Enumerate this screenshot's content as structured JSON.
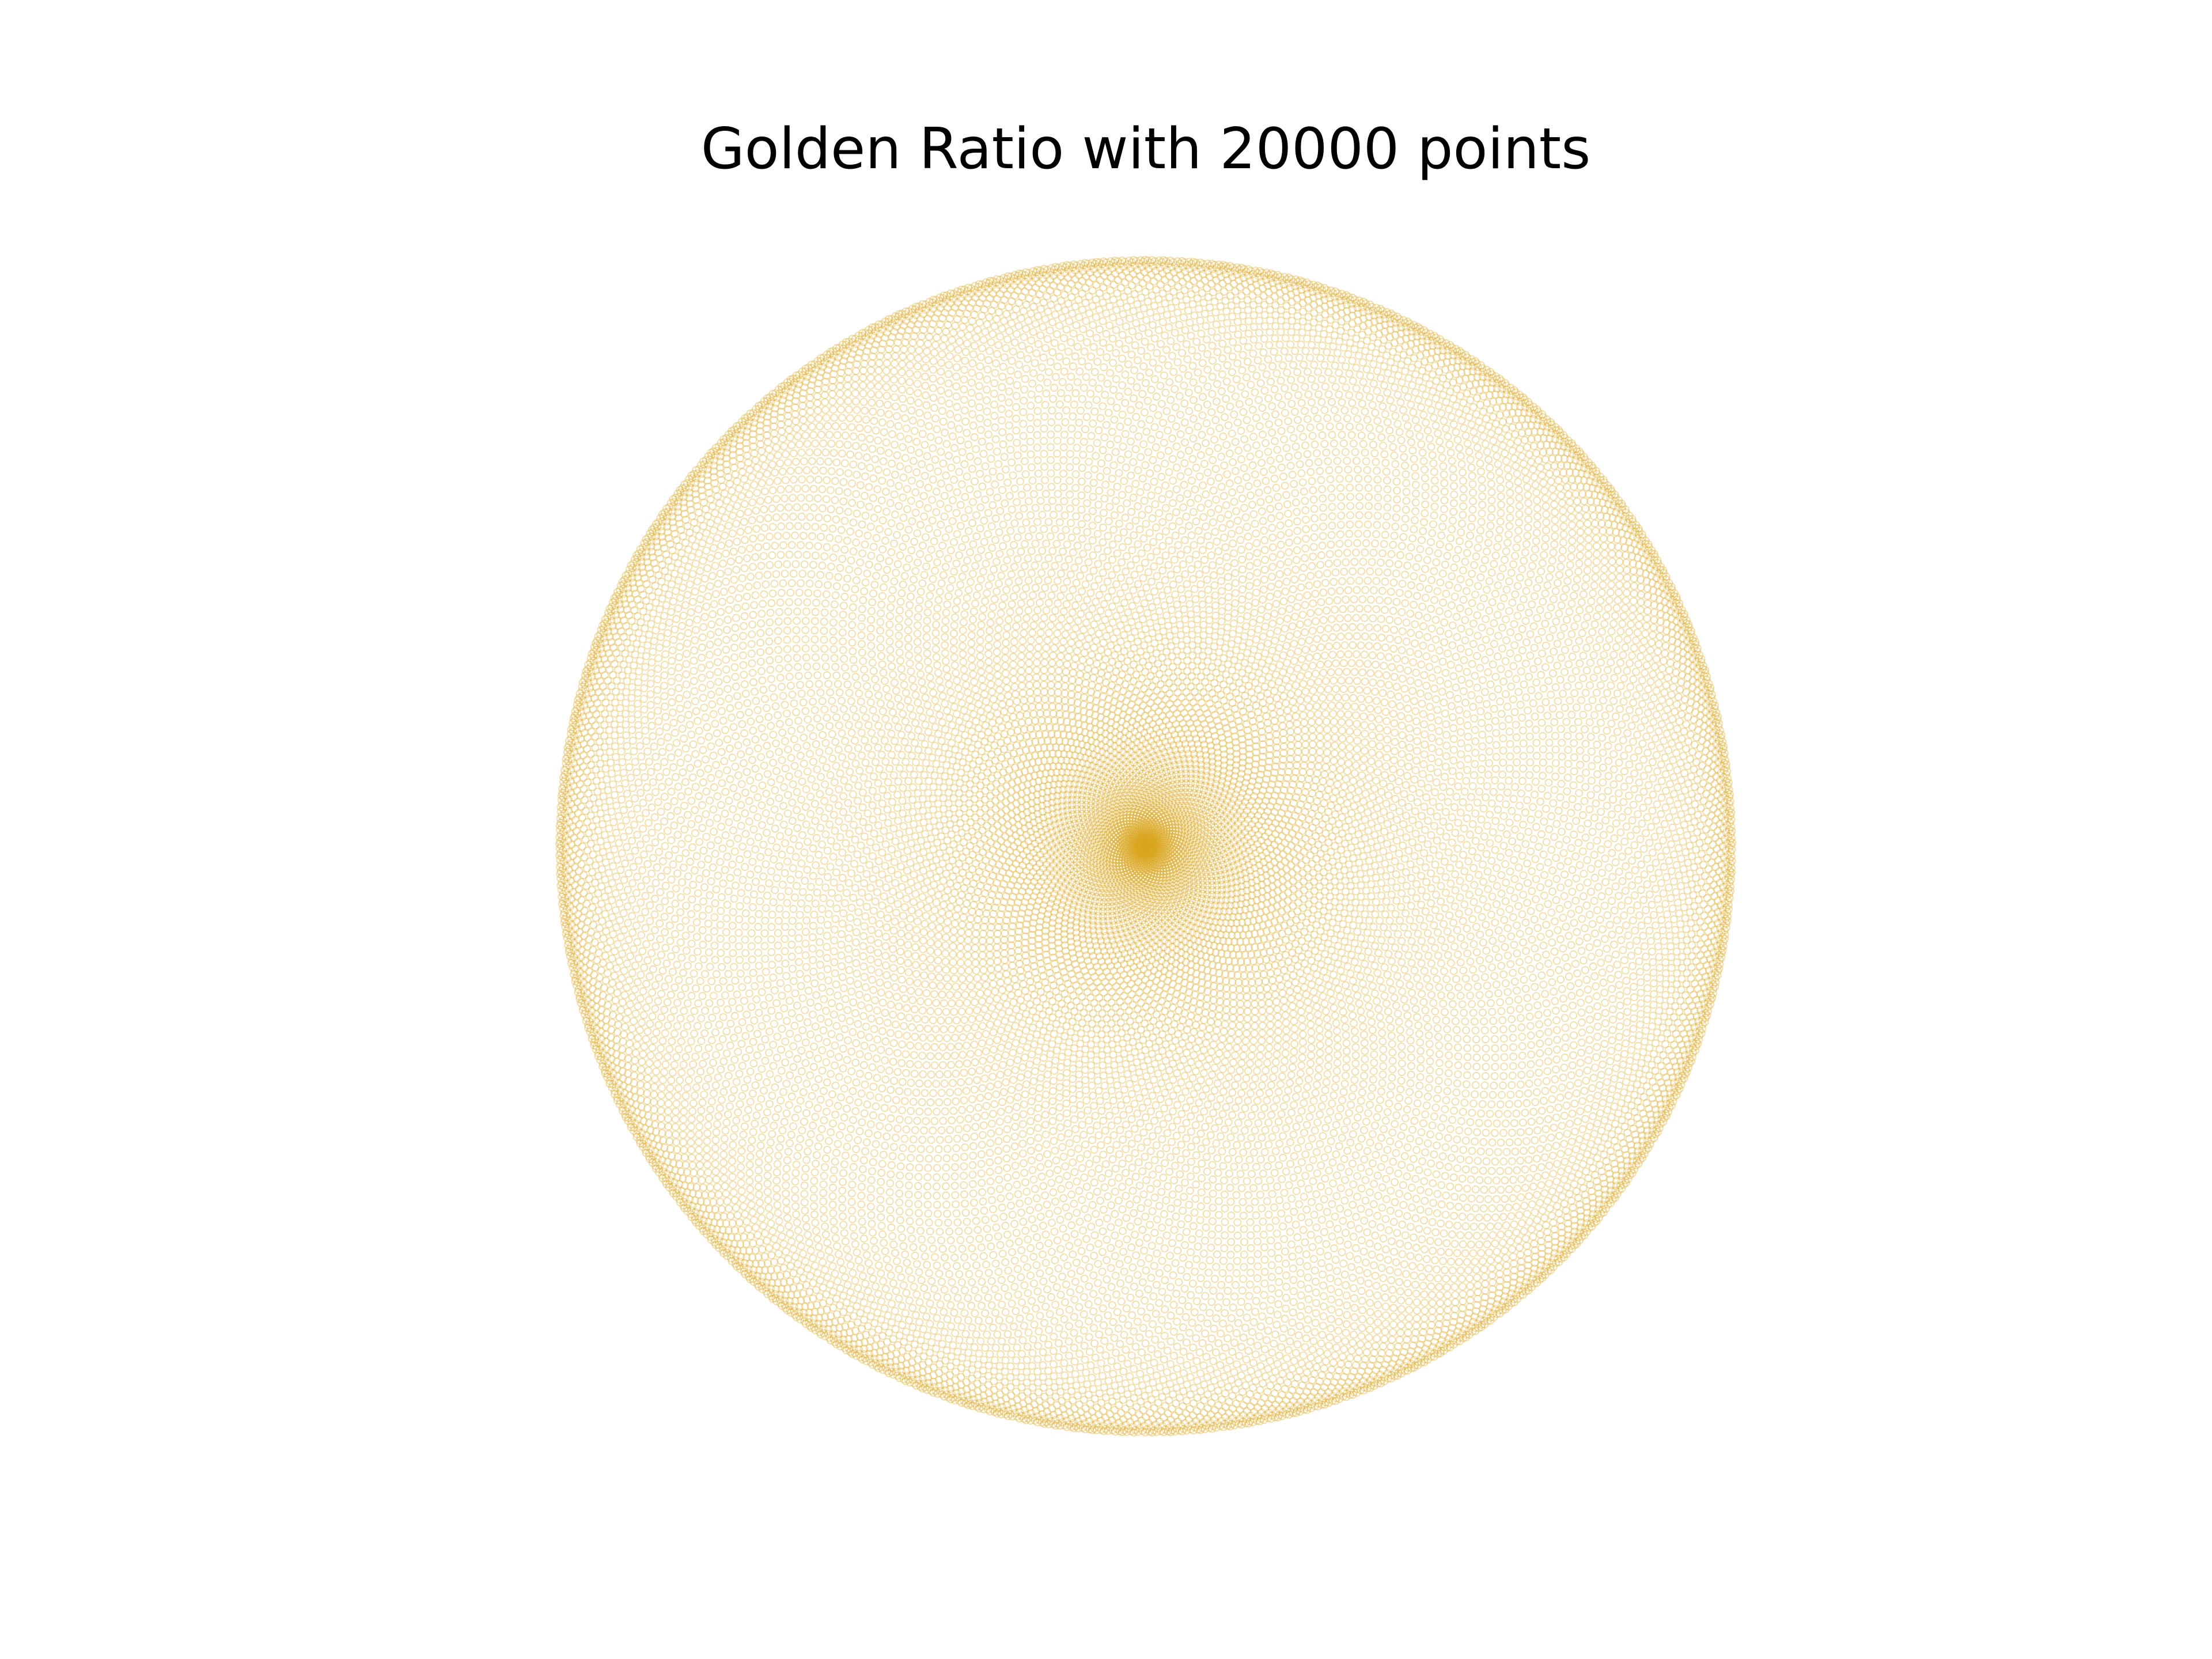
{
  "chart_data": {
    "type": "golden-ratio",
    "title": "Golden Ratio with 20000 points",
    "points": 20000,
    "color": "#daa520",
    "marker": "open-circle"
  }
}
